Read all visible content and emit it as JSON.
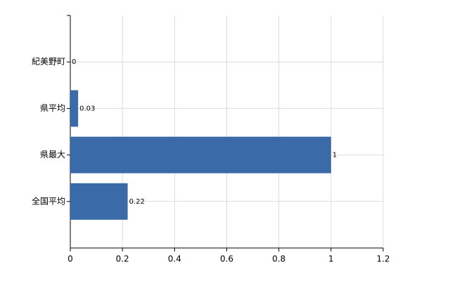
{
  "chart_data": {
    "type": "bar",
    "orientation": "horizontal",
    "categories": [
      "紀美野町",
      "県平均",
      "県最大",
      "全国平均"
    ],
    "values": [
      0,
      0.03,
      1,
      0.22
    ],
    "color": "#3a6aa8",
    "xlim": [
      0,
      1.2
    ],
    "xticks": [
      0,
      0.2,
      0.4,
      0.6,
      0.8,
      1,
      1.2
    ],
    "grid": true
  }
}
